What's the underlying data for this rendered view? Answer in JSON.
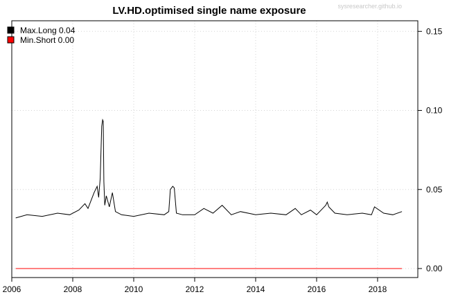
{
  "chart_data": {
    "type": "line",
    "title": "LV.HD.optimised single name exposure",
    "watermark": "sysresearcher.github.io",
    "xlabel": "",
    "ylabel": "",
    "x_range": [
      2006.0,
      2019.32
    ],
    "ylim": [
      -0.0057,
      0.1567
    ],
    "x_ticks": [
      2006,
      2008,
      2010,
      2012,
      2014,
      2016,
      2018
    ],
    "y_ticks": [
      0.0,
      0.05,
      0.1,
      0.15
    ],
    "y_tick_labels": [
      "0.00",
      "0.05",
      "0.10",
      "0.15"
    ],
    "y_axis_side": "right",
    "grid": true,
    "legend_position": "top-left",
    "series": [
      {
        "name": "Max.Long 0.04",
        "color": "#000000",
        "x": [
          2006.13,
          2006.5,
          2007.0,
          2007.5,
          2007.9,
          2008.2,
          2008.4,
          2008.5,
          2008.6,
          2008.7,
          2008.8,
          2008.85,
          2008.9,
          2008.95,
          2008.98,
          2009.0,
          2009.02,
          2009.05,
          2009.1,
          2009.2,
          2009.3,
          2009.4,
          2009.6,
          2010.0,
          2010.5,
          2011.0,
          2011.15,
          2011.2,
          2011.28,
          2011.33,
          2011.4,
          2011.6,
          2012.0,
          2012.3,
          2012.6,
          2012.9,
          2013.2,
          2013.5,
          2014.0,
          2014.5,
          2015.0,
          2015.3,
          2015.5,
          2015.8,
          2016.0,
          2016.2,
          2016.3,
          2016.35,
          2016.4,
          2016.6,
          2017.0,
          2017.5,
          2017.8,
          2017.9,
          2018.2,
          2018.5,
          2018.8
        ],
        "values": [
          0.032,
          0.034,
          0.033,
          0.035,
          0.034,
          0.037,
          0.041,
          0.038,
          0.043,
          0.048,
          0.052,
          0.045,
          0.057,
          0.09,
          0.094,
          0.093,
          0.055,
          0.04,
          0.046,
          0.039,
          0.048,
          0.036,
          0.034,
          0.033,
          0.035,
          0.034,
          0.036,
          0.05,
          0.052,
          0.051,
          0.035,
          0.034,
          0.034,
          0.038,
          0.035,
          0.04,
          0.034,
          0.036,
          0.034,
          0.035,
          0.034,
          0.038,
          0.034,
          0.037,
          0.034,
          0.038,
          0.04,
          0.042,
          0.039,
          0.035,
          0.034,
          0.035,
          0.034,
          0.039,
          0.035,
          0.034,
          0.036
        ]
      },
      {
        "name": "Min.Short 0.00",
        "color": "#ff0000",
        "x": [
          2006.13,
          2018.8
        ],
        "values": [
          0.0,
          0.0
        ]
      }
    ]
  }
}
